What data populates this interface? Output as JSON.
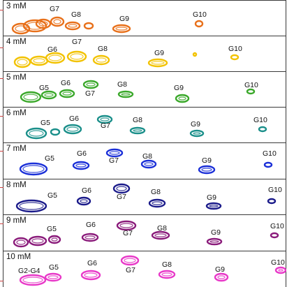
{
  "panels": [
    {
      "concentration": "3 mM",
      "color": "#e8701a",
      "labels": [
        {
          "text": "G7"
        },
        {
          "text": "G8"
        },
        {
          "text": "G9"
        },
        {
          "text": "G10"
        }
      ]
    },
    {
      "concentration": "4 mM",
      "color": "#f2c200",
      "labels": [
        {
          "text": "G6"
        },
        {
          "text": "G7"
        },
        {
          "text": "G8"
        },
        {
          "text": "G9"
        },
        {
          "text": "G10"
        }
      ]
    },
    {
      "concentration": "5 mM",
      "color": "#3aa82a",
      "labels": [
        {
          "text": "G5"
        },
        {
          "text": "G6"
        },
        {
          "text": "G7"
        },
        {
          "text": "G8"
        },
        {
          "text": "G9"
        },
        {
          "text": "G10"
        }
      ]
    },
    {
      "concentration": "6 mM",
      "color": "#1a8f8a",
      "labels": [
        {
          "text": "G5"
        },
        {
          "text": "G6"
        },
        {
          "text": "G7"
        },
        {
          "text": "G8"
        },
        {
          "text": "G9"
        },
        {
          "text": "G10"
        }
      ]
    },
    {
      "concentration": "7 mM",
      "color": "#1a2fd8",
      "labels": [
        {
          "text": "G5"
        },
        {
          "text": "G6"
        },
        {
          "text": "G7"
        },
        {
          "text": "G8"
        },
        {
          "text": "G9"
        },
        {
          "text": "G10"
        }
      ]
    },
    {
      "concentration": "8 mM",
      "color": "#1a1a8a",
      "labels": [
        {
          "text": "G5"
        },
        {
          "text": "G6"
        },
        {
          "text": "G7"
        },
        {
          "text": "G8"
        },
        {
          "text": "G9"
        },
        {
          "text": "G10"
        }
      ]
    },
    {
      "concentration": "9 mM",
      "color": "#8a1a7a",
      "labels": [
        {
          "text": "G5"
        },
        {
          "text": "G6"
        },
        {
          "text": "G7"
        },
        {
          "text": "G8"
        },
        {
          "text": "G9"
        },
        {
          "text": "G10"
        }
      ]
    },
    {
      "concentration": "10 mM",
      "color": "#e838c8",
      "labels": [
        {
          "text": "G2-G4"
        },
        {
          "text": "G5"
        },
        {
          "text": "G6"
        },
        {
          "text": "G7"
        },
        {
          "text": "G8"
        },
        {
          "text": "G9"
        },
        {
          "text": "G10"
        }
      ]
    }
  ]
}
